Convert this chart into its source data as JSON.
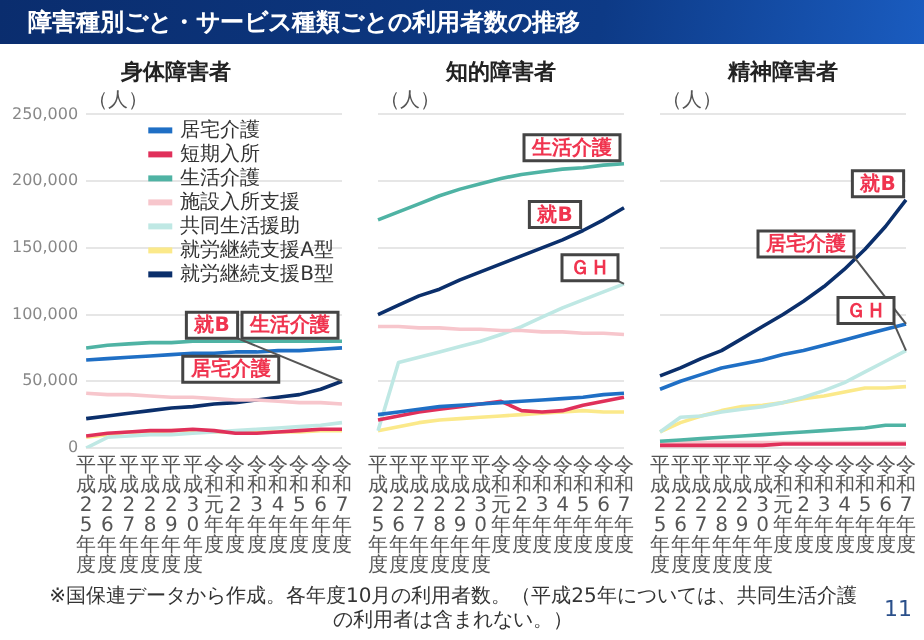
{
  "chart_data": [
    {
      "type": "other",
      "title": "障害種別ごと・サービス種類ごとの利用者数の推移",
      "annotations": [
        "※国保連データから作成。各年度10月の利用者数。（平成25年については、共同生活介護の利用者は含まれない。）",
        "11"
      ]
    },
    {
      "type": "line",
      "title": "身体障害者",
      "ylabel": "（人）",
      "categories": [
        "平成25年度",
        "平成26年度",
        "平成27年度",
        "平成28年度",
        "平成29年度",
        "平成30年度",
        "令和元年度",
        "令和2年度",
        "令和3年度",
        "令和4年度",
        "令和5年度",
        "令和6年度",
        "令和7年度"
      ],
      "series": [
        {
          "name": "居宅介護",
          "color": "#1f6fc5",
          "values": [
            66000,
            67000,
            68000,
            69000,
            70000,
            71000,
            71000,
            72000,
            72000,
            73000,
            73000,
            74000,
            75000
          ]
        },
        {
          "name": "短期入所",
          "color": "#e0305a",
          "values": [
            9000,
            11000,
            12000,
            13000,
            13000,
            14000,
            13000,
            11000,
            11000,
            12000,
            13000,
            14000,
            14000
          ]
        },
        {
          "name": "生活介護",
          "color": "#4fb3a4",
          "values": [
            75000,
            77000,
            78000,
            79000,
            79000,
            80000,
            80000,
            80000,
            80000,
            80000,
            80000,
            80000,
            80000
          ]
        },
        {
          "name": "施設入所支援",
          "color": "#f7c6cc",
          "values": [
            41000,
            40000,
            40000,
            39000,
            38000,
            38000,
            37000,
            36000,
            36000,
            35000,
            34000,
            34000,
            33000
          ]
        },
        {
          "name": "共同生活援助",
          "color": "#bfe8e4",
          "values": [
            0,
            8000,
            9000,
            10000,
            10000,
            11000,
            12000,
            13000,
            14000,
            15000,
            16000,
            17000,
            19000
          ]
        },
        {
          "name": "就労継続支援A型",
          "color": "#fbe98a",
          "values": [
            8000,
            10000,
            12000,
            12000,
            13000,
            13000,
            12000,
            12000,
            12000,
            12000,
            12000,
            13000,
            13000
          ]
        },
        {
          "name": "就労継続支援B型",
          "color": "#0b2f6b",
          "values": [
            22000,
            24000,
            26000,
            28000,
            30000,
            31000,
            33000,
            34000,
            36000,
            38000,
            40000,
            44000,
            50000
          ]
        }
      ],
      "ylim": [
        0,
        250000
      ],
      "yticks": [
        {
          "value": 0,
          "label": "0"
        },
        {
          "value": 50000,
          "label": "50,000"
        },
        {
          "value": 100000,
          "label": "100,000"
        },
        {
          "value": 150000,
          "label": "150,000"
        },
        {
          "value": 200000,
          "label": "200,000"
        },
        {
          "value": 250000,
          "label": "250,000"
        }
      ],
      "grid": "y",
      "marker": "none",
      "legend": "top right",
      "annotations": [
        {
          "text": "生活介護",
          "x": "令和7年度",
          "y": 80000
        },
        {
          "text": "居宅介護",
          "x": "平成30年度",
          "y": 71000
        },
        {
          "text": "就B",
          "x": "令和7年度",
          "y": 50000
        }
      ]
    },
    {
      "type": "line",
      "title": "知的障害者",
      "ylabel": "（人）",
      "categories": [
        "平成25年度",
        "平成26年度",
        "平成27年度",
        "平成28年度",
        "平成29年度",
        "平成30年度",
        "令和元年度",
        "令和2年度",
        "令和3年度",
        "令和4年度",
        "令和5年度",
        "令和6年度",
        "令和7年度"
      ],
      "series": [
        {
          "color": "#1f6fc5",
          "values": [
            25000,
            27000,
            29000,
            31000,
            32000,
            33000,
            34000,
            35000,
            36000,
            37000,
            38000,
            40000,
            41000
          ]
        },
        {
          "color": "#e0305a",
          "values": [
            21000,
            24000,
            27000,
            29000,
            31000,
            33000,
            35000,
            28000,
            27000,
            28000,
            32000,
            35000,
            38000
          ]
        },
        {
          "color": "#4fb3a4",
          "values": [
            171000,
            177000,
            183000,
            189000,
            194000,
            198000,
            202000,
            205000,
            207000,
            209000,
            210000,
            212000,
            213000
          ]
        },
        {
          "color": "#f7c6cc",
          "values": [
            91000,
            91000,
            90000,
            90000,
            89000,
            89000,
            88000,
            88000,
            87000,
            87000,
            86000,
            86000,
            85000
          ]
        },
        {
          "color": "#bfe8e4",
          "values": [
            13000,
            64000,
            68000,
            72000,
            76000,
            80000,
            85000,
            91000,
            98000,
            105000,
            111000,
            117000,
            123000
          ]
        },
        {
          "color": "#fbe98a",
          "values": [
            13000,
            16000,
            19000,
            21000,
            22000,
            23000,
            24000,
            25000,
            26000,
            27000,
            28000,
            27000,
            27000
          ]
        },
        {
          "color": "#0b2f6b",
          "values": [
            100000,
            107000,
            114000,
            119000,
            126000,
            132000,
            138000,
            144000,
            150000,
            156000,
            163000,
            171000,
            180000
          ]
        }
      ],
      "ylim": [
        0,
        250000
      ],
      "yticks": [
        0,
        50000,
        100000,
        150000,
        200000,
        250000
      ],
      "grid": "y",
      "marker": "none",
      "tick_labels": "x",
      "annotations": [
        {
          "text": "生活介護",
          "x": "令和7年度",
          "y": 213000
        },
        {
          "text": "就B",
          "x": "令和5年度",
          "y": 163000
        },
        {
          "text": "ＧＨ",
          "x": "令和7年度",
          "y": 123000
        }
      ]
    },
    {
      "type": "line",
      "title": "精神障害者",
      "ylabel": "（人）",
      "categories": [
        "平成25年度",
        "平成26年度",
        "平成27年度",
        "平成28年度",
        "平成29年度",
        "平成30年度",
        "令和元年度",
        "令和2年度",
        "令和3年度",
        "令和4年度",
        "令和5年度",
        "令和6年度",
        "令和7年度"
      ],
      "series": [
        {
          "color": "#1f6fc5",
          "values": [
            44000,
            50000,
            55000,
            60000,
            63000,
            66000,
            70000,
            73000,
            77000,
            81000,
            85000,
            89000,
            93000
          ]
        },
        {
          "color": "#e0305a",
          "values": [
            2000,
            2000,
            2000,
            2000,
            2000,
            2000,
            3000,
            3000,
            3000,
            3000,
            3000,
            3000,
            3000
          ]
        },
        {
          "color": "#4fb3a4",
          "values": [
            5000,
            6000,
            7000,
            8000,
            9000,
            10000,
            11000,
            12000,
            13000,
            14000,
            15000,
            17000,
            17000
          ]
        },
        {
          "color": "#f7c6cc",
          "values": [
            4000,
            4000,
            4000,
            4000,
            4000,
            4000,
            4000,
            4000,
            4000,
            4000,
            4000,
            4000,
            4000
          ]
        },
        {
          "color": "#bfe8e4",
          "values": [
            12000,
            23000,
            24000,
            27000,
            29000,
            31000,
            34000,
            38000,
            43000,
            49000,
            57000,
            65000,
            73000
          ]
        },
        {
          "color": "#fbe98a",
          "values": [
            12000,
            19000,
            24000,
            28000,
            31000,
            32000,
            34000,
            37000,
            39000,
            42000,
            45000,
            45000,
            46000
          ]
        },
        {
          "color": "#0b2f6b",
          "values": [
            54000,
            60000,
            67000,
            73000,
            82000,
            91000,
            100000,
            110000,
            121000,
            134000,
            149000,
            166000,
            186000
          ]
        }
      ],
      "ylim": [
        0,
        250000
      ],
      "yticks": [
        0,
        50000,
        100000,
        150000,
        200000,
        250000
      ],
      "grid": "y",
      "marker": "none",
      "tick_labels": "x",
      "annotations": [
        {
          "text": "就B",
          "x": "令和7年度",
          "y": 186000
        },
        {
          "text": "居宅介護",
          "x": "令和7年度",
          "y": 93000
        },
        {
          "text": "ＧＨ",
          "x": "令和7年度",
          "y": 73000
        }
      ]
    }
  ]
}
